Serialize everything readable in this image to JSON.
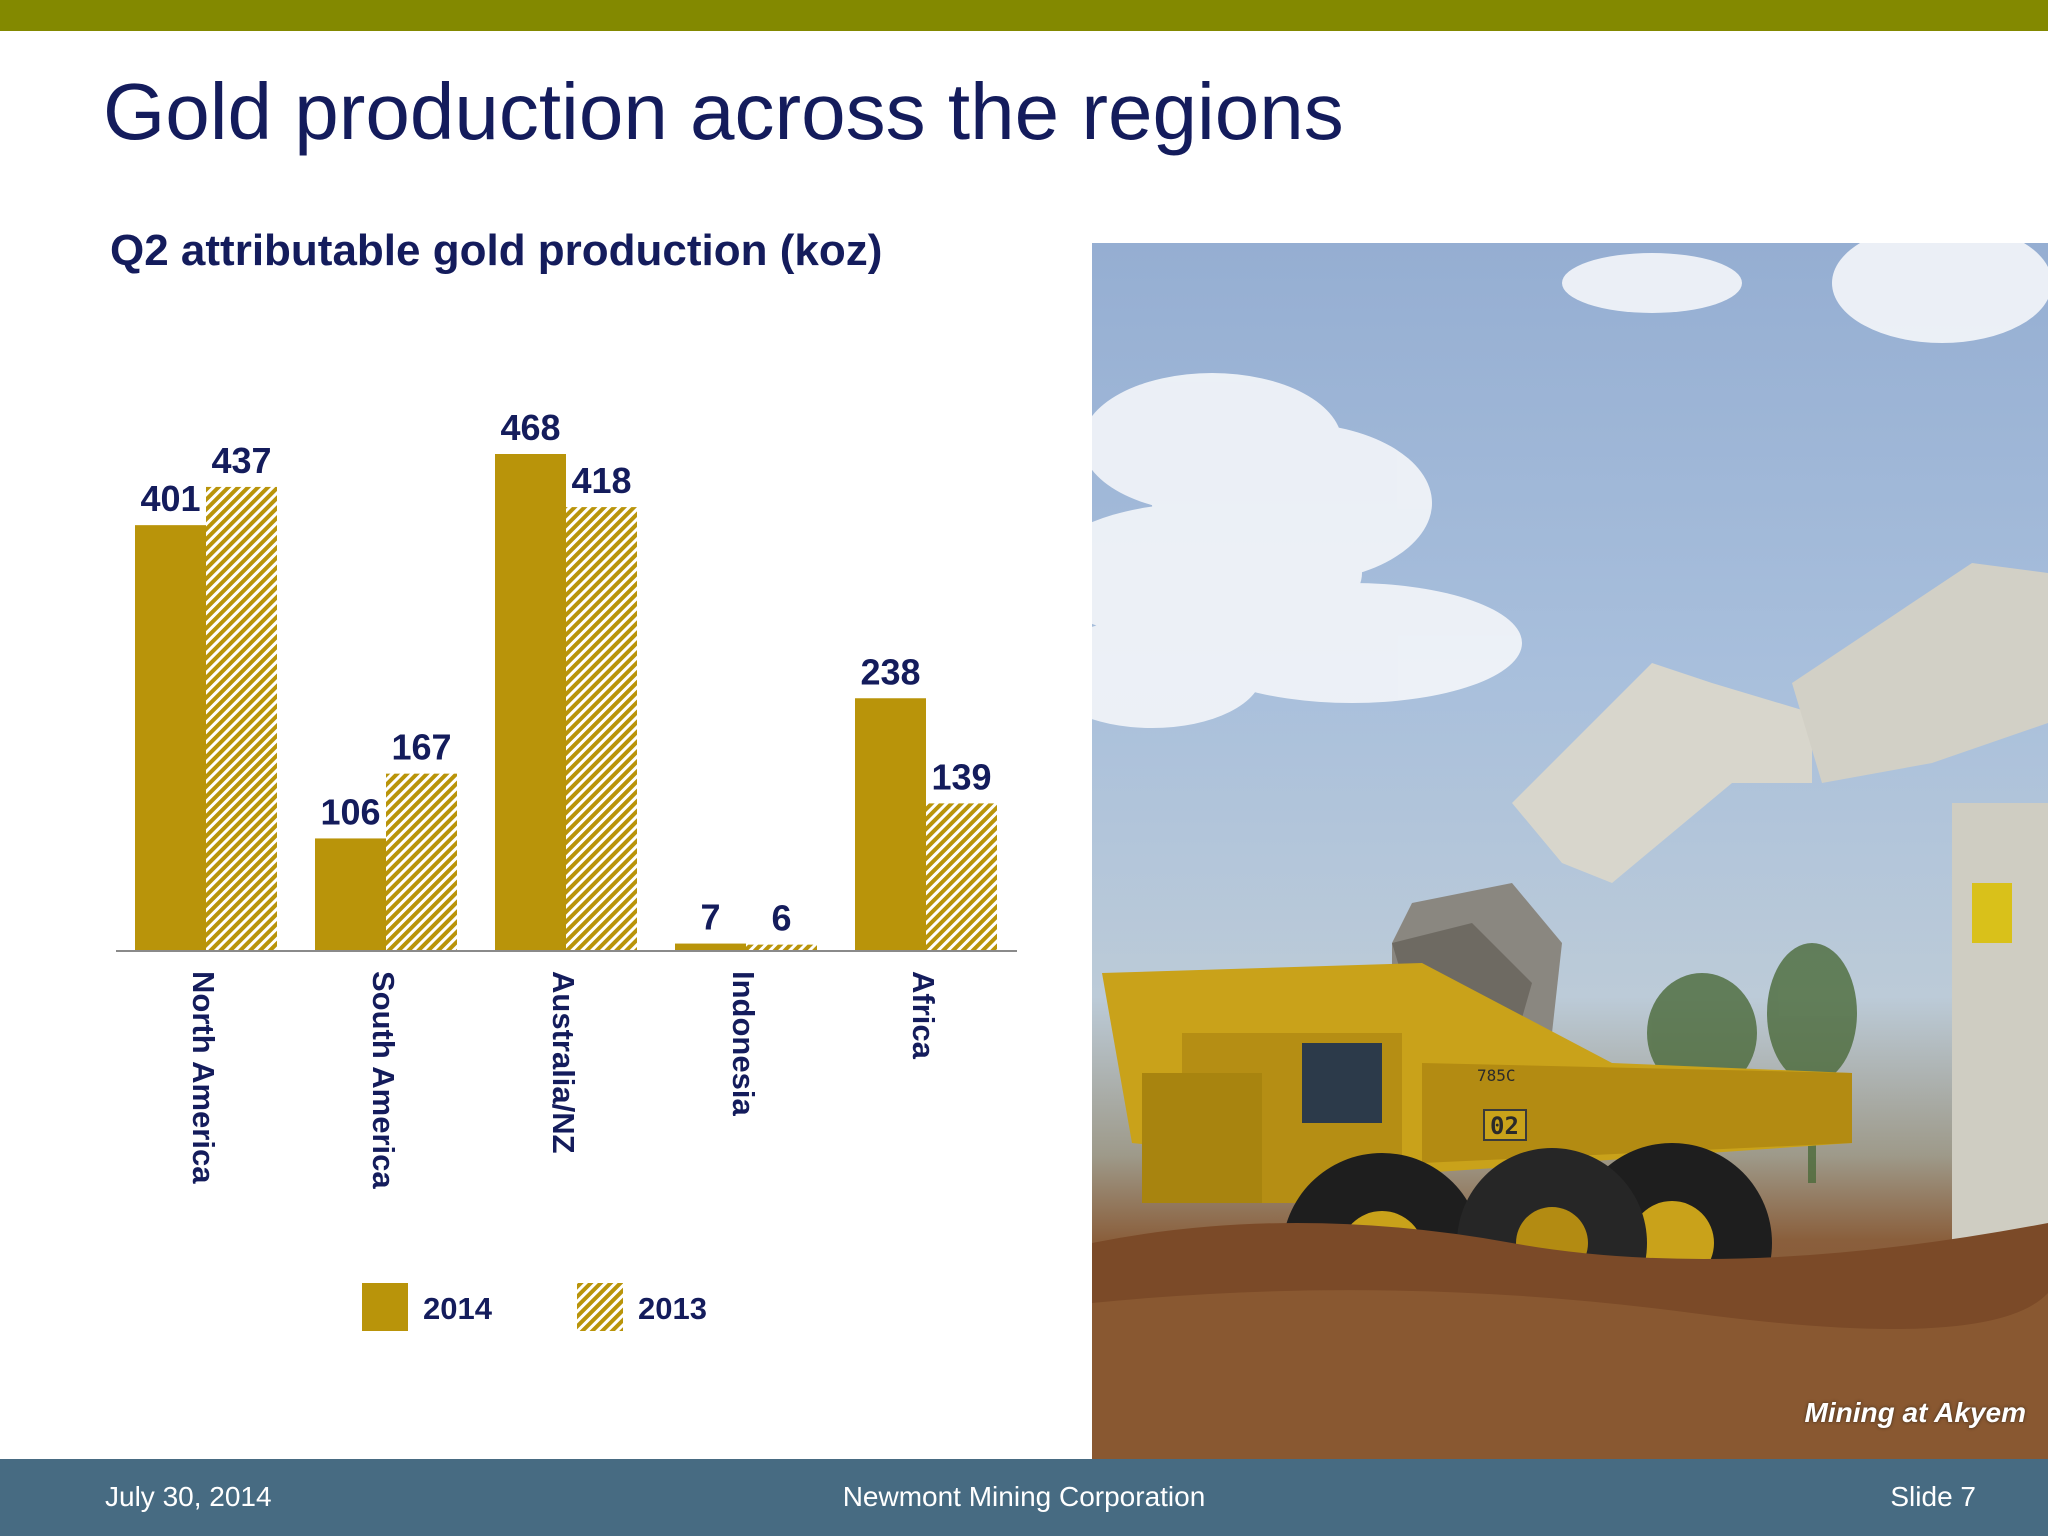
{
  "slide": {
    "title": "Gold production across the regions",
    "footer_date": "July 30, 2014",
    "footer_company": "Newmont Mining Corporation",
    "footer_slide": "Slide 7"
  },
  "photo": {
    "caption": "Mining at Akyem",
    "truck_labels": [
      "785C",
      "02"
    ]
  },
  "colors": {
    "accent_bar": "#838900",
    "title": "#141c5c",
    "bar_gold": "#b9940a",
    "footer": "#476b82"
  },
  "chart_data": {
    "type": "bar",
    "title": "Q2 attributable gold production (koz)",
    "categories": [
      "North America",
      "South America",
      "Australia/NZ",
      "Indonesia",
      "Africa"
    ],
    "series": [
      {
        "name": "2014",
        "pattern": "solid",
        "values": [
          401,
          106,
          468,
          7,
          238
        ]
      },
      {
        "name": "2013",
        "pattern": "hatched",
        "values": [
          437,
          167,
          418,
          6,
          139
        ]
      }
    ],
    "ylim": [
      0,
      468
    ],
    "legend": "bottom",
    "grid": false,
    "data_labels": true,
    "category_label_rotation": "vertical"
  }
}
